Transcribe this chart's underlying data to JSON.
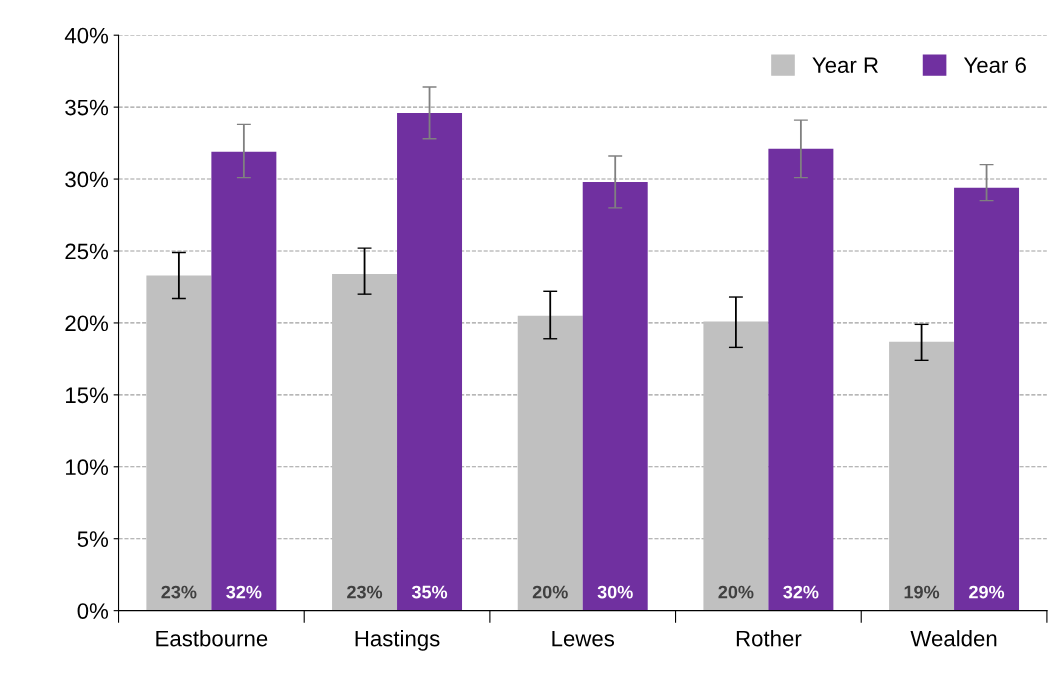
{
  "chart_data": {
    "type": "bar",
    "categories": [
      "Eastbourne",
      "Hastings",
      "Lewes",
      "Rother",
      "Wealden"
    ],
    "series": [
      {
        "name": "Year R",
        "color": "#c0c0c0",
        "values": [
          23.3,
          23.4,
          20.5,
          20.1,
          18.7
        ],
        "errors": [
          [
            21.7,
            24.9
          ],
          [
            22.0,
            25.2
          ],
          [
            18.9,
            22.2
          ],
          [
            18.3,
            21.8
          ],
          [
            17.4,
            19.9
          ]
        ],
        "value_labels": [
          "23%",
          "23%",
          "20%",
          "20%",
          "19%"
        ]
      },
      {
        "name": "Year 6",
        "color": "#7030a0",
        "values": [
          31.9,
          34.6,
          29.8,
          32.1,
          29.4
        ],
        "errors": [
          [
            30.1,
            33.8
          ],
          [
            32.8,
            36.4
          ],
          [
            28.0,
            31.6
          ],
          [
            30.1,
            34.1
          ],
          [
            28.5,
            31.0
          ]
        ],
        "value_labels": [
          "32%",
          "35%",
          "30%",
          "32%",
          "29%"
        ]
      }
    ],
    "ylim": [
      0,
      40
    ],
    "yticks": [
      {
        "value": 0,
        "label": "0%"
      },
      {
        "value": 5,
        "label": "5%"
      },
      {
        "value": 10,
        "label": "10%"
      },
      {
        "value": 15,
        "label": "15%"
      },
      {
        "value": 20,
        "label": "20%"
      },
      {
        "value": 25,
        "label": "25%"
      },
      {
        "value": 30,
        "label": "30%"
      },
      {
        "value": 35,
        "label": "35%"
      },
      {
        "value": 40,
        "label": "40%"
      }
    ],
    "grid": "y",
    "legend": "top right"
  }
}
